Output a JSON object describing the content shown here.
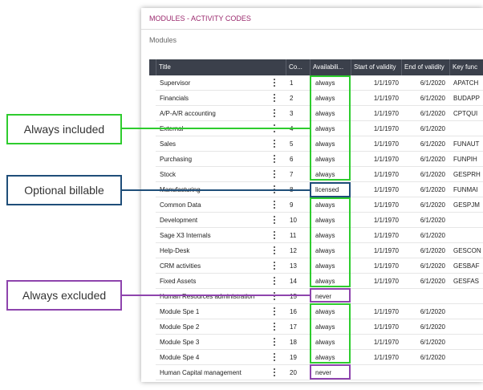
{
  "page": {
    "title": "MODULES - ACTIVITY CODES",
    "subtitle": "Modules",
    "table": {
      "columns": [
        "Title",
        "Co...",
        "Availabili...",
        "Start of validity",
        "End of validity",
        "Key func"
      ],
      "rows": [
        [
          "Supervisor",
          "1",
          "always",
          "1/1/1970",
          "6/1/2020",
          "APATCH"
        ],
        [
          "Financials",
          "2",
          "always",
          "1/1/1970",
          "6/1/2020",
          "BUDAPP"
        ],
        [
          "A/P-A/R accounting",
          "3",
          "always",
          "1/1/1970",
          "6/1/2020",
          "CPTQUI"
        ],
        [
          "External",
          "4",
          "always",
          "1/1/1970",
          "6/1/2020",
          ""
        ],
        [
          "Sales",
          "5",
          "always",
          "1/1/1970",
          "6/1/2020",
          "FUNAUT"
        ],
        [
          "Purchasing",
          "6",
          "always",
          "1/1/1970",
          "6/1/2020",
          "FUNPIH"
        ],
        [
          "Stock",
          "7",
          "always",
          "1/1/1970",
          "6/1/2020",
          "GESPRH"
        ],
        [
          "Manufacturing",
          "8",
          "licensed",
          "1/1/1970",
          "6/1/2020",
          "FUNMAI"
        ],
        [
          "Common Data",
          "9",
          "always",
          "1/1/1970",
          "6/1/2020",
          "GESPJM"
        ],
        [
          "Development",
          "10",
          "always",
          "1/1/1970",
          "6/1/2020",
          ""
        ],
        [
          "Sage X3 Internals",
          "11",
          "always",
          "1/1/1970",
          "6/1/2020",
          ""
        ],
        [
          "Help-Desk",
          "12",
          "always",
          "1/1/1970",
          "6/1/2020",
          "GESCON"
        ],
        [
          "CRM activities",
          "13",
          "always",
          "1/1/1970",
          "6/1/2020",
          "GESBAF"
        ],
        [
          "Fixed Assets",
          "14",
          "always",
          "1/1/1970",
          "6/1/2020",
          "GESFAS"
        ],
        [
          "Human Resources administration",
          "15",
          "never",
          "",
          "",
          ""
        ],
        [
          "Module Spe 1",
          "16",
          "always",
          "1/1/1970",
          "6/1/2020",
          ""
        ],
        [
          "Module Spe 2",
          "17",
          "always",
          "1/1/1970",
          "6/1/2020",
          ""
        ],
        [
          "Module Spe 3",
          "18",
          "always",
          "1/1/1970",
          "6/1/2020",
          ""
        ],
        [
          "Module Spe 4",
          "19",
          "always",
          "1/1/1970",
          "6/1/2020",
          ""
        ],
        [
          "Human Capital management",
          "20",
          "never",
          "",
          "",
          ""
        ]
      ]
    },
    "annotations": {
      "included": "Always included",
      "billable": "Optional billable",
      "excluded": "Always excluded"
    }
  }
}
